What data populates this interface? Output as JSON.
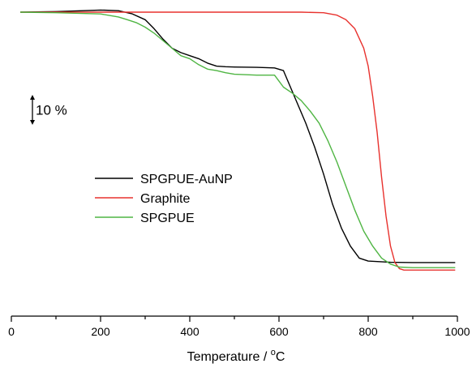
{
  "chart_data": {
    "type": "line",
    "title": "",
    "xlabel": "Temperature / ",
    "xlabel_unit_sup": "o",
    "xlabel_unit": "C",
    "ylabel": "",
    "xlim": [
      0,
      1000
    ],
    "ylim": [
      0,
      100
    ],
    "x_ticks": [
      "0",
      "200",
      "400",
      "600",
      "800",
      "1000"
    ],
    "grid": false,
    "legend_position": "lower-left",
    "scale_bar_label": "10 %",
    "scale_bar_value": 10,
    "series": [
      {
        "name": "SPGPUE-AuNP",
        "color": "#000000",
        "x": [
          20,
          100,
          200,
          240,
          270,
          300,
          320,
          340,
          360,
          380,
          400,
          420,
          440,
          460,
          480,
          500,
          550,
          590,
          610,
          620,
          640,
          660,
          680,
          700,
          720,
          740,
          760,
          780,
          800,
          850,
          900,
          995
        ],
        "y": [
          100,
          100.2,
          100.7,
          100.5,
          99.5,
          97.5,
          94.5,
          91,
          88,
          86.5,
          85.5,
          84.5,
          83,
          82,
          81.8,
          81.7,
          81.6,
          81.4,
          80.5,
          77,
          70,
          63,
          55,
          46,
          36,
          28,
          22,
          18,
          17,
          16.6,
          16.5,
          16.5
        ]
      },
      {
        "name": "Graphite",
        "color": "#e8322e",
        "x": [
          20,
          200,
          400,
          600,
          650,
          700,
          730,
          750,
          770,
          790,
          800,
          810,
          820,
          830,
          840,
          850,
          860,
          870,
          880,
          900,
          995
        ],
        "y": [
          100,
          100,
          100,
          100,
          100,
          99.8,
          99,
          97.5,
          94.5,
          88,
          82,
          72,
          60,
          45,
          32,
          22,
          16.5,
          14.5,
          14,
          14,
          14
        ]
      },
      {
        "name": "SPGPUE",
        "color": "#4fb543",
        "x": [
          20,
          100,
          200,
          240,
          260,
          280,
          300,
          320,
          340,
          360,
          380,
          400,
          420,
          440,
          460,
          480,
          500,
          550,
          590,
          600,
          610,
          630,
          650,
          670,
          690,
          710,
          730,
          750,
          770,
          790,
          810,
          830,
          850,
          870,
          900,
          995
        ],
        "y": [
          100,
          99.8,
          99.4,
          98.4,
          97.5,
          96.5,
          95,
          93,
          90.5,
          88,
          85.5,
          84.5,
          82.5,
          81,
          80.5,
          79.8,
          79.3,
          79,
          79,
          77,
          75,
          73,
          70.5,
          67,
          63,
          57,
          50,
          42,
          34,
          27,
          22,
          18,
          16,
          15,
          14.8,
          14.8
        ]
      }
    ]
  }
}
